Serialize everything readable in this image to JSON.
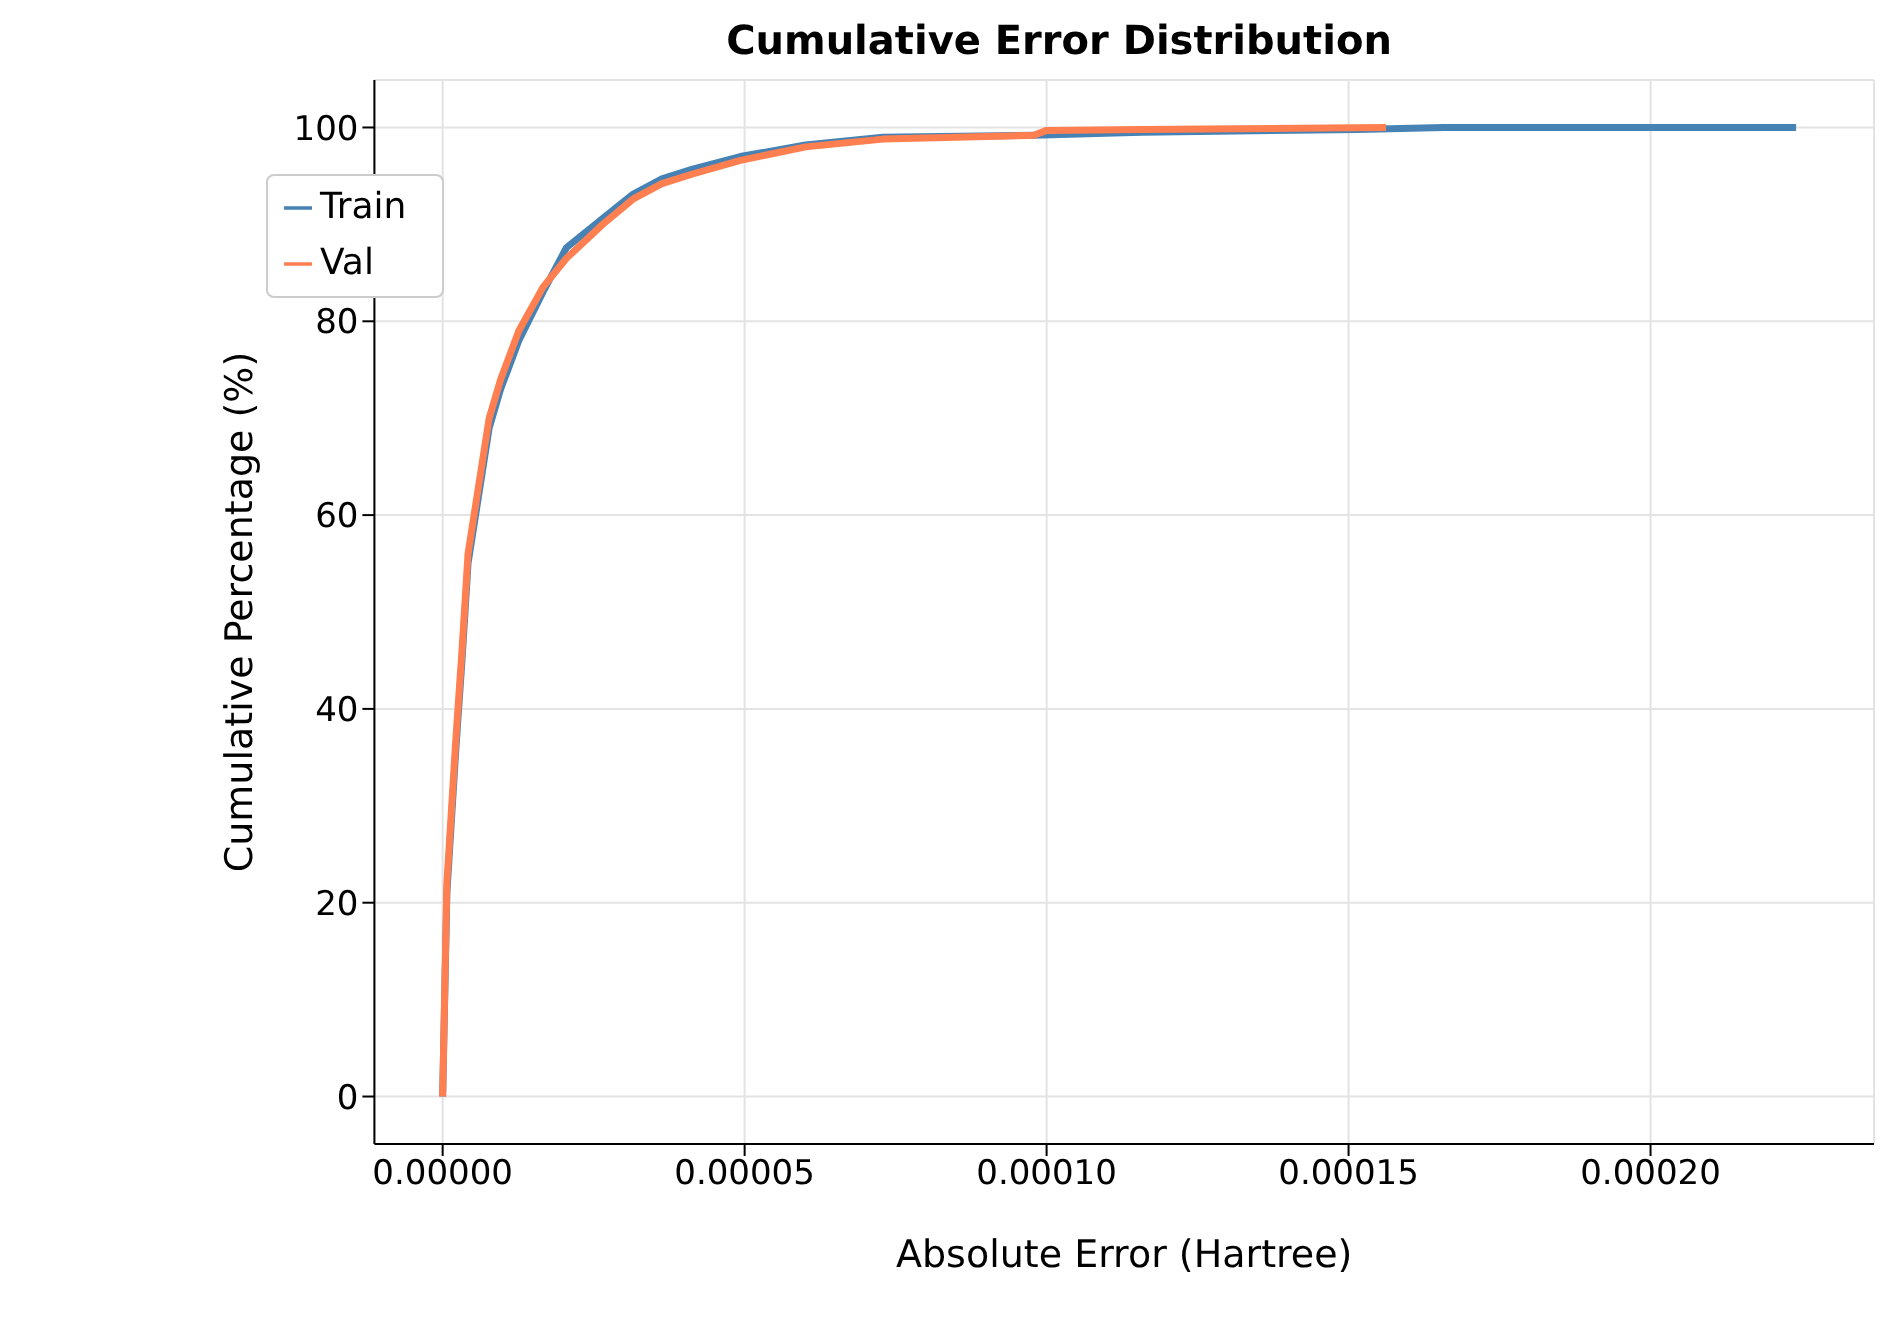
{
  "chart_data": {
    "type": "line",
    "title": "Cumulative Error Distribution",
    "xlabel": "Absolute Error (Hartree)",
    "ylabel": "Cumulative Percentage (%)",
    "xlim": [
      -1.13e-05,
      0.000237
    ],
    "ylim": [
      -4.9,
      104.9
    ],
    "xticks": [
      {
        "value": 0,
        "label": "0.00000"
      },
      {
        "value": 5e-05,
        "label": "0.00005"
      },
      {
        "value": 0.0001,
        "label": "0.00010"
      },
      {
        "value": 0.00015,
        "label": "0.00015"
      },
      {
        "value": 0.0002,
        "label": "0.00020"
      }
    ],
    "yticks": [
      0,
      20,
      40,
      60,
      80,
      100
    ],
    "grid": true,
    "legend": "top left",
    "marker": "none",
    "line_style": "solid",
    "series": [
      {
        "name": "Train",
        "color": "#4682b4",
        "x": [
          0,
          7e-07,
          2.2e-06,
          3.2e-06,
          4.2e-06,
          5.7e-06,
          7.7e-06,
          9.6e-06,
          1.26e-05,
          1.66e-05,
          2.05e-05,
          2.65e-05,
          3.15e-05,
          3.63e-05,
          4.14e-05,
          4.93e-05,
          6.01e-05,
          7.29e-05,
          9.79e-05,
          0.0001158,
          0.0001515,
          0.0001658,
          0.0002241
        ],
        "values": [
          0,
          21,
          36,
          45,
          55,
          61,
          69,
          73,
          78,
          83,
          87.6,
          90.6,
          93.1,
          94.7,
          95.7,
          97,
          98.2,
          99,
          99.2,
          99.5,
          99.8,
          100,
          100
        ]
      },
      {
        "name": "Val",
        "color": "#ff7f50",
        "x": [
          0,
          7e-07,
          2.2e-06,
          3.2e-06,
          4.2e-06,
          5.7e-06,
          7.7e-06,
          9.6e-06,
          1.26e-05,
          1.66e-05,
          2.05e-05,
          2.65e-05,
          3.15e-05,
          3.63e-05,
          4.14e-05,
          4.93e-05,
          6.01e-05,
          7.29e-05,
          9.79e-05,
          0.0001,
          0.0001158,
          0.0001562
        ],
        "values": [
          0,
          22,
          37,
          46,
          56,
          62,
          70,
          74,
          79,
          83.5,
          86.5,
          90,
          92.6,
          94.2,
          95.2,
          96.6,
          98,
          98.8,
          99.2,
          99.7,
          99.8,
          100
        ]
      }
    ]
  }
}
